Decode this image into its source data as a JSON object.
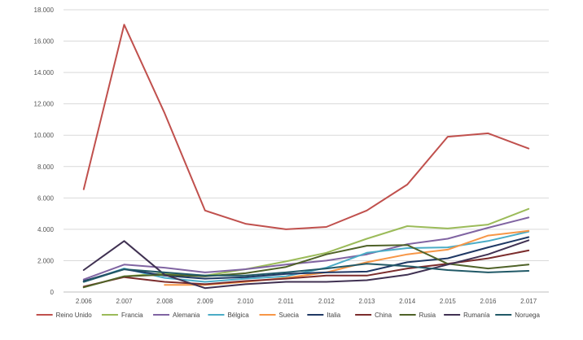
{
  "chart_data": {
    "type": "line",
    "title": "",
    "xlabel": "",
    "ylabel": "",
    "x": [
      "2.006",
      "2.007",
      "2.008",
      "2.009",
      "2.010",
      "2.011",
      "2.012",
      "2.013",
      "2.014",
      "2.015",
      "2.016",
      "2.017"
    ],
    "ylim": [
      0,
      18000
    ],
    "yticks": [
      0,
      2000,
      4000,
      6000,
      8000,
      10000,
      12000,
      14000,
      16000,
      18000
    ],
    "ytick_labels": [
      "0",
      "2.000",
      "4.000",
      "6.000",
      "8.000",
      "10.000",
      "12.000",
      "14.000",
      "16.000",
      "18.000"
    ],
    "grid": true,
    "legend": "bottom",
    "series": [
      {
        "name": "Reino Unido",
        "color": "#c0504d",
        "values": [
          6550,
          17050,
          11400,
          5200,
          4350,
          4000,
          4150,
          5200,
          6850,
          9900,
          10120,
          9150
        ]
      },
      {
        "name": "Francia",
        "color": "#9bbb59",
        "values": [
          300,
          1000,
          1200,
          1050,
          1450,
          1950,
          2500,
          3400,
          4200,
          4050,
          4300,
          5300
        ]
      },
      {
        "name": "Alemania",
        "color": "#8064a2",
        "values": [
          800,
          1750,
          1550,
          1250,
          1450,
          1750,
          2000,
          2400,
          3050,
          3400,
          4100,
          4750
        ]
      },
      {
        "name": "Bélgica",
        "color": "#4bacc6",
        "values": [
          650,
          1500,
          900,
          650,
          850,
          1000,
          1550,
          2500,
          2800,
          2850,
          3250,
          3850
        ]
      },
      {
        "name": "Suecia",
        "color": "#f79646",
        "values": [
          null,
          null,
          450,
          450,
          650,
          900,
          1250,
          1900,
          2400,
          2700,
          3600,
          3900
        ]
      },
      {
        "name": "Italia",
        "color": "#1f3864",
        "values": [
          700,
          1450,
          1050,
          850,
          950,
          1150,
          1250,
          1300,
          1900,
          2150,
          2850,
          3500
        ]
      },
      {
        "name": "China",
        "color": "#7b2c2c",
        "values": [
          350,
          950,
          650,
          500,
          700,
          850,
          1050,
          1050,
          1500,
          1800,
          2150,
          2650
        ]
      },
      {
        "name": "Rusia",
        "color": "#4f6228",
        "values": [
          300,
          1000,
          1100,
          1000,
          1200,
          1600,
          2400,
          2950,
          3000,
          1800,
          1500,
          1750
        ]
      },
      {
        "name": "Rumanía",
        "color": "#403152",
        "values": [
          1400,
          3250,
          1100,
          250,
          500,
          650,
          650,
          750,
          1100,
          1750,
          2400,
          3300
        ]
      },
      {
        "name": "Noruega",
        "color": "#215967",
        "values": [
          650,
          1450,
          1250,
          1050,
          1050,
          1250,
          1500,
          1800,
          1650,
          1400,
          1250,
          1350
        ]
      }
    ]
  }
}
